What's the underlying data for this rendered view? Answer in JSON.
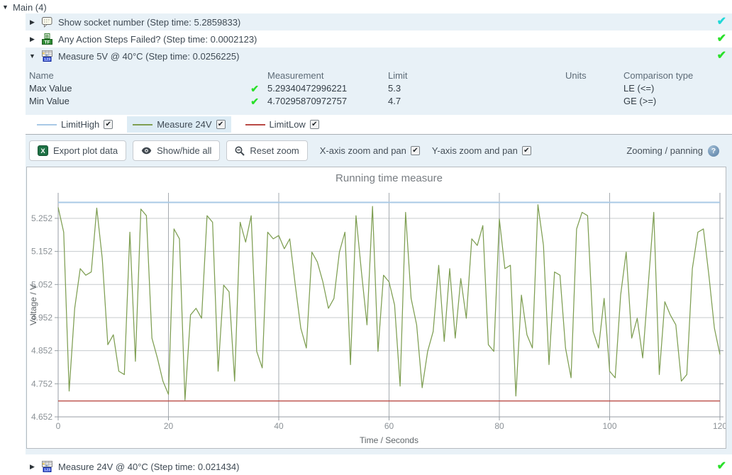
{
  "colors": {
    "pass_green": "#2ae02a",
    "skip_cyan": "#1fd8d8",
    "row_highlight": "#e8f1f7",
    "limit_high_blue": "#a9c9e6",
    "series_olive": "#7e9e52",
    "limit_low_red": "#b94a45"
  },
  "icons": {
    "triangle_down": "▼",
    "triangle_right": "▶",
    "checkmark": "✔",
    "help_question": "?"
  },
  "header": {
    "title": "Main (4)"
  },
  "steps": [
    {
      "label": "Show socket number (Step time: 5.2859833)",
      "icon": "message-popup-icon",
      "status": "passed-skip-color",
      "status_color": "#1fd8d8",
      "expanded": false
    },
    {
      "label": "Any Action Steps Failed? (Step time: 0.0002123)",
      "icon": "boolean-test-icon",
      "status": "passed",
      "status_color": "#2ae02a",
      "expanded": false
    },
    {
      "label": "Measure 5V @ 40°C (Step time: 0.0256225)",
      "icon": "numeric-test-icon",
      "status": "passed",
      "status_color": "#2ae02a",
      "expanded": true
    },
    {
      "label": "Measure 24V @ 40°C (Step time: 0.021434)",
      "icon": "numeric-test-icon",
      "status": "passed",
      "status_color": "#2ae02a",
      "expanded": false
    }
  ],
  "results_table": {
    "headers": [
      "Name",
      "Measurement",
      "Limit",
      "Units",
      "Comparison type"
    ],
    "rows": [
      {
        "name": "Max Value",
        "passed": true,
        "measurement": "5.29340472996221",
        "limit": "5.3",
        "units": "",
        "comparison": "LE (<=)"
      },
      {
        "name": "Min Value",
        "passed": true,
        "measurement": "4.70295870972757",
        "limit": "4.7",
        "units": "",
        "comparison": "GE (>=)"
      }
    ]
  },
  "legend": {
    "items": [
      {
        "label": "LimitHigh",
        "color": "#a9c9e6",
        "checked": true,
        "highlighted": false
      },
      {
        "label": "Measure 24V",
        "color": "#7e9e52",
        "checked": true,
        "highlighted": true
      },
      {
        "label": "LimitLow",
        "color": "#b94a45",
        "checked": true,
        "highlighted": false
      }
    ]
  },
  "toolbar": {
    "export_label": "Export plot data",
    "showhide_label": "Show/hide all",
    "reset_label": "Reset zoom",
    "x_zoom_label": "X-axis zoom and pan",
    "x_zoom_checked": true,
    "y_zoom_label": "Y-axis zoom and pan",
    "y_zoom_checked": true,
    "help_label": "Zooming / panning"
  },
  "chart_data": {
    "type": "line",
    "title": "Running time measure",
    "xlabel": "Time / Seconds",
    "ylabel": "Voltage / V",
    "xlim": [
      0,
      120
    ],
    "ylim": [
      4.652,
      5.329
    ],
    "x_ticks": [
      0,
      20,
      40,
      60,
      80,
      100,
      120
    ],
    "y_ticks": [
      4.652,
      4.752,
      4.852,
      4.952,
      5.052,
      5.152,
      5.252
    ],
    "grid": true,
    "legend_position": "top-left-bar-above-plot",
    "series": [
      {
        "name": "LimitHigh",
        "color": "#a9c9e6",
        "constant": 5.3,
        "width": 2
      },
      {
        "name": "Measure 24V",
        "color": "#7e9e52",
        "x_start": 0,
        "x_step": 1,
        "values": [
          5.285,
          5.21,
          4.73,
          4.98,
          5.1,
          5.08,
          5.09,
          5.283,
          5.13,
          4.87,
          4.9,
          4.79,
          4.78,
          5.21,
          4.82,
          5.28,
          5.26,
          4.89,
          4.83,
          4.76,
          4.72,
          5.22,
          5.19,
          4.703,
          4.96,
          4.98,
          4.95,
          5.26,
          5.24,
          4.79,
          5.05,
          5.03,
          4.76,
          5.24,
          5.18,
          5.26,
          4.85,
          4.8,
          5.21,
          5.19,
          5.2,
          5.16,
          5.19,
          5.05,
          4.92,
          4.86,
          5.15,
          5.12,
          5.06,
          4.98,
          5.01,
          5.15,
          5.21,
          4.81,
          5.26,
          5.09,
          4.93,
          5.288,
          4.85,
          5.08,
          5.06,
          4.99,
          4.745,
          5.27,
          5.01,
          4.93,
          4.74,
          4.85,
          4.91,
          5.11,
          4.88,
          5.1,
          4.89,
          5.07,
          4.95,
          5.19,
          5.17,
          5.23,
          4.87,
          4.85,
          5.25,
          5.1,
          5.11,
          4.715,
          5.02,
          4.9,
          4.86,
          5.293,
          5.17,
          4.81,
          5.09,
          5.08,
          4.86,
          4.77,
          5.22,
          5.27,
          5.26,
          4.91,
          4.86,
          5.01,
          4.79,
          4.77,
          5.02,
          5.15,
          4.89,
          4.95,
          4.83,
          5.05,
          5.27,
          4.78,
          5.0,
          4.96,
          4.93,
          4.76,
          4.78,
          5.1,
          5.21,
          5.22,
          5.08,
          4.92,
          4.84
        ]
      },
      {
        "name": "LimitLow",
        "color": "#b94a45",
        "constant": 4.7,
        "width": 1.4
      }
    ]
  }
}
